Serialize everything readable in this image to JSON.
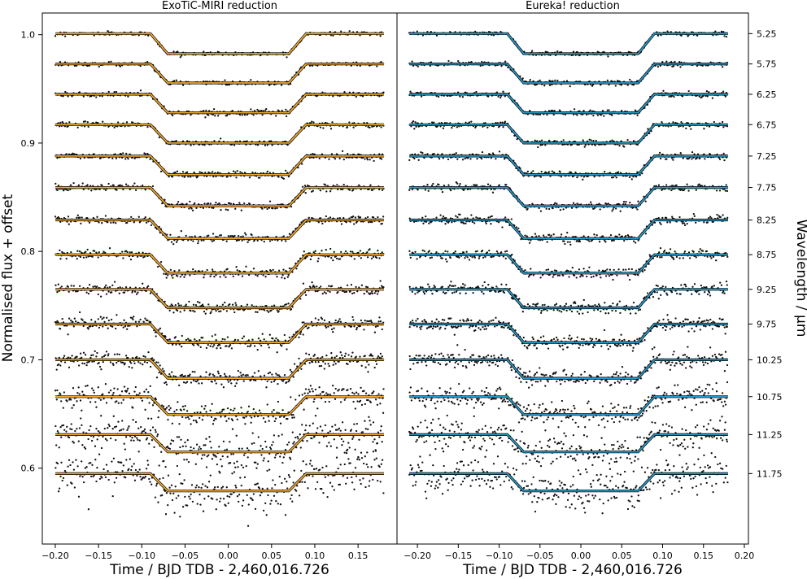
{
  "chart_data": [
    {
      "type": "scatter",
      "title": "ExoTiC-MIRI reduction",
      "xlabel": "Time / BJD TDB - 2,460,016.726",
      "ylabel": "Normalised flux + offset",
      "xlim": [
        -0.215,
        0.195
      ],
      "ylim": [
        0.53,
        1.02
      ],
      "x_ticks": [
        "-0.20",
        "-0.15",
        "-0.10",
        "-0.05",
        "0.00",
        "0.05",
        "0.10",
        "0.15"
      ],
      "y_ticks": [
        "0.6",
        "0.7",
        "0.8",
        "0.9",
        "1.0"
      ],
      "model_color": "#f0a930",
      "point_color": "#111111",
      "transit": {
        "t1": -0.09,
        "t2": -0.07,
        "t3": 0.07,
        "t4": 0.09,
        "time_start": -0.2,
        "time_end": 0.18
      },
      "series": [
        {
          "wavelength": "5.25",
          "baseline": 1.001,
          "depth": 0.0185,
          "noise": 0.0008
        },
        {
          "wavelength": "5.75",
          "baseline": 0.973,
          "depth": 0.0175,
          "noise": 0.001
        },
        {
          "wavelength": "6.25",
          "baseline": 0.945,
          "depth": 0.017,
          "noise": 0.0011
        },
        {
          "wavelength": "6.75",
          "baseline": 0.917,
          "depth": 0.017,
          "noise": 0.0012
        },
        {
          "wavelength": "7.25",
          "baseline": 0.888,
          "depth": 0.017,
          "noise": 0.0014
        },
        {
          "wavelength": "7.75",
          "baseline": 0.859,
          "depth": 0.017,
          "noise": 0.0016
        },
        {
          "wavelength": "8.25",
          "baseline": 0.829,
          "depth": 0.017,
          "noise": 0.0018
        },
        {
          "wavelength": "8.75",
          "baseline": 0.797,
          "depth": 0.017,
          "noise": 0.0021
        },
        {
          "wavelength": "9.25",
          "baseline": 0.765,
          "depth": 0.017,
          "noise": 0.0025
        },
        {
          "wavelength": "9.75",
          "baseline": 0.733,
          "depth": 0.017,
          "noise": 0.003
        },
        {
          "wavelength": "10.25",
          "baseline": 0.7,
          "depth": 0.017,
          "noise": 0.0036
        },
        {
          "wavelength": "10.75",
          "baseline": 0.666,
          "depth": 0.0165,
          "noise": 0.0048
        },
        {
          "wavelength": "11.25",
          "baseline": 0.631,
          "depth": 0.016,
          "noise": 0.0075
        },
        {
          "wavelength": "11.75",
          "baseline": 0.595,
          "depth": 0.016,
          "noise": 0.01
        }
      ]
    },
    {
      "type": "scatter",
      "title": "Eureka! reduction",
      "xlabel": "Time / BJD TDB - 2,460,016.726",
      "ylabel": "Wavelength / µm",
      "xlim": [
        -0.225,
        0.205
      ],
      "ylim": [
        0.53,
        1.02
      ],
      "x_ticks": [
        "-0.20",
        "-0.15",
        "-0.10",
        "-0.05",
        "0.00",
        "0.05",
        "0.10",
        "0.15",
        "0.20"
      ],
      "y_ticks": [
        "5.25",
        "5.75",
        "6.25",
        "6.75",
        "7.25",
        "7.75",
        "8.25",
        "8.75",
        "9.25",
        "9.75",
        "10.25",
        "10.75",
        "11.25",
        "11.75"
      ],
      "model_color": "#2a9ac8",
      "point_color": "#111111",
      "transit": {
        "t1": -0.09,
        "t2": -0.07,
        "t3": 0.07,
        "t4": 0.09,
        "time_start": -0.21,
        "time_end": 0.18
      },
      "series": [
        {
          "wavelength": "5.25",
          "baseline": 1.001,
          "depth": 0.0185,
          "noise": 0.0009
        },
        {
          "wavelength": "5.75",
          "baseline": 0.973,
          "depth": 0.0175,
          "noise": 0.0011
        },
        {
          "wavelength": "6.25",
          "baseline": 0.945,
          "depth": 0.017,
          "noise": 0.0012
        },
        {
          "wavelength": "6.75",
          "baseline": 0.917,
          "depth": 0.017,
          "noise": 0.0013
        },
        {
          "wavelength": "7.25",
          "baseline": 0.888,
          "depth": 0.017,
          "noise": 0.0015
        },
        {
          "wavelength": "7.75",
          "baseline": 0.859,
          "depth": 0.017,
          "noise": 0.0017
        },
        {
          "wavelength": "8.25",
          "baseline": 0.829,
          "depth": 0.017,
          "noise": 0.0019
        },
        {
          "wavelength": "8.75",
          "baseline": 0.797,
          "depth": 0.017,
          "noise": 0.0022
        },
        {
          "wavelength": "9.25",
          "baseline": 0.765,
          "depth": 0.017,
          "noise": 0.0026
        },
        {
          "wavelength": "9.75",
          "baseline": 0.733,
          "depth": 0.017,
          "noise": 0.003
        },
        {
          "wavelength": "10.25",
          "baseline": 0.7,
          "depth": 0.017,
          "noise": 0.0036
        },
        {
          "wavelength": "10.75",
          "baseline": 0.666,
          "depth": 0.0165,
          "noise": 0.0045
        },
        {
          "wavelength": "11.25",
          "baseline": 0.631,
          "depth": 0.016,
          "noise": 0.007
        },
        {
          "wavelength": "11.75",
          "baseline": 0.595,
          "depth": 0.016,
          "noise": 0.009
        }
      ]
    }
  ]
}
